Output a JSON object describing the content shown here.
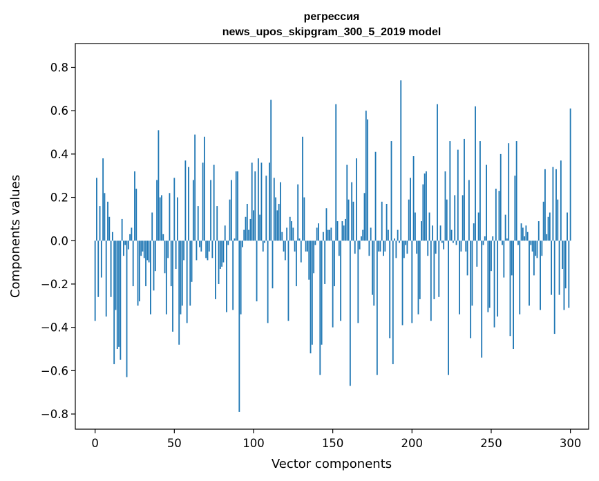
{
  "chart_data": {
    "type": "bar",
    "title": "регрессия",
    "subtitle": "news_upos_skipgram_300_5_2019 model",
    "xlabel": "Vector components",
    "ylabel": "Components values",
    "xlim": [
      -12.5,
      311.5
    ],
    "ylim": [
      -0.87,
      0.91
    ],
    "xticks": [
      0,
      50,
      100,
      150,
      200,
      250,
      300
    ],
    "yticks": [
      -0.8,
      -0.6,
      -0.4,
      -0.2,
      0.0,
      0.2,
      0.4,
      0.6,
      0.8
    ],
    "xtick_labels": [
      "0",
      "50",
      "100",
      "150",
      "200",
      "250",
      "300"
    ],
    "ytick_labels": [
      "−0.8",
      "−0.6",
      "−0.4",
      "−0.2",
      "0.0",
      "0.2",
      "0.4",
      "0.6",
      "0.8"
    ],
    "grid": false,
    "bar_color": "#1f77b4",
    "values": [
      -0.37,
      0.29,
      -0.26,
      0.16,
      -0.17,
      0.38,
      0.22,
      -0.35,
      0.18,
      0.11,
      -0.26,
      0.04,
      -0.57,
      -0.32,
      -0.5,
      -0.49,
      -0.55,
      0.1,
      -0.07,
      -0.02,
      -0.63,
      -0.04,
      0.03,
      0.06,
      -0.21,
      0.32,
      0.24,
      -0.3,
      -0.28,
      -0.07,
      -0.05,
      -0.08,
      -0.21,
      -0.09,
      -0.1,
      -0.34,
      0.13,
      -0.23,
      -0.14,
      0.28,
      0.51,
      0.2,
      0.21,
      0.03,
      -0.15,
      -0.34,
      -0.08,
      0.22,
      -0.21,
      -0.42,
      0.29,
      -0.13,
      0.2,
      -0.48,
      -0.34,
      -0.3,
      -0.09,
      0.37,
      -0.38,
      0.34,
      -0.3,
      -0.19,
      0.28,
      0.49,
      -0.09,
      0.16,
      -0.03,
      -0.05,
      0.36,
      0.48,
      -0.08,
      -0.09,
      -0.05,
      0.28,
      -0.08,
      0.35,
      -0.27,
      0.16,
      -0.2,
      -0.13,
      -0.12,
      -0.1,
      0.07,
      -0.33,
      -0.02,
      0.19,
      0.28,
      -0.32,
      0.01,
      0.32,
      0.32,
      -0.79,
      -0.34,
      -0.03,
      0.05,
      0.11,
      0.17,
      0.05,
      0.1,
      0.36,
      0.14,
      0.32,
      -0.28,
      0.38,
      0.12,
      0.36,
      -0.05,
      -0.01,
      0.3,
      -0.38,
      0.36,
      0.65,
      -0.22,
      0.29,
      0.2,
      0.14,
      0.17,
      0.27,
      0.04,
      -0.05,
      -0.09,
      0.06,
      -0.37,
      0.11,
      0.09,
      0.06,
      -0.05,
      -0.21,
      0.26,
      0.01,
      -0.1,
      0.48,
      0.2,
      -0.05,
      -0.05,
      -0.18,
      -0.52,
      -0.48,
      -0.15,
      -0.02,
      0.06,
      0.08,
      -0.62,
      -0.48,
      0.04,
      -0.2,
      0.15,
      0.05,
      0.05,
      0.06,
      -0.4,
      -0.21,
      0.63,
      0.09,
      -0.07,
      -0.37,
      0.09,
      0.07,
      0.1,
      0.35,
      0.19,
      -0.67,
      0.27,
      0.18,
      -0.06,
      0.38,
      -0.38,
      -0.04,
      0.02,
      0.05,
      0.22,
      0.6,
      0.56,
      -0.07,
      0.06,
      -0.25,
      -0.3,
      0.41,
      -0.62,
      -0.05,
      -0.05,
      0.18,
      -0.07,
      -0.05,
      0.17,
      0.05,
      -0.45,
      0.46,
      -0.57,
      0.01,
      -0.08,
      0.05,
      -0.01,
      0.74,
      -0.39,
      -0.08,
      -0.02,
      -0.06,
      0.19,
      0.29,
      -0.38,
      0.39,
      0.13,
      -0.06,
      -0.34,
      -0.27,
      0.09,
      0.26,
      0.31,
      0.32,
      -0.07,
      0.13,
      -0.37,
      0.07,
      -0.27,
      -0.06,
      0.63,
      -0.26,
      0.07,
      -0.01,
      -0.04,
      0.32,
      0.19,
      -0.62,
      0.46,
      0.05,
      -0.01,
      0.21,
      -0.02,
      0.42,
      -0.34,
      -0.05,
      0.21,
      0.47,
      -0.05,
      -0.16,
      0.28,
      -0.45,
      -0.3,
      0.08,
      0.62,
      -0.12,
      0.13,
      0.46,
      -0.54,
      -0.02,
      0.02,
      0.35,
      -0.33,
      -0.31,
      -0.14,
      0.02,
      -0.4,
      0.24,
      -0.35,
      0.23,
      0.4,
      -0.02,
      -0.17,
      0.12,
      0.01,
      0.45,
      -0.44,
      -0.16,
      -0.5,
      0.3,
      0.46,
      -0.02,
      -0.34,
      0.08,
      0.06,
      0.02,
      0.07,
      0.04,
      -0.3,
      -0.02,
      -0.05,
      -0.16,
      -0.07,
      -0.08,
      0.09,
      -0.32,
      -0.07,
      0.18,
      0.33,
      0.03,
      0.11,
      0.13,
      -0.25,
      0.34,
      -0.43,
      0.33,
      0.19,
      -0.25,
      0.37,
      -0.13,
      -0.32,
      -0.22,
      0.13,
      -0.31,
      0.61
    ]
  }
}
